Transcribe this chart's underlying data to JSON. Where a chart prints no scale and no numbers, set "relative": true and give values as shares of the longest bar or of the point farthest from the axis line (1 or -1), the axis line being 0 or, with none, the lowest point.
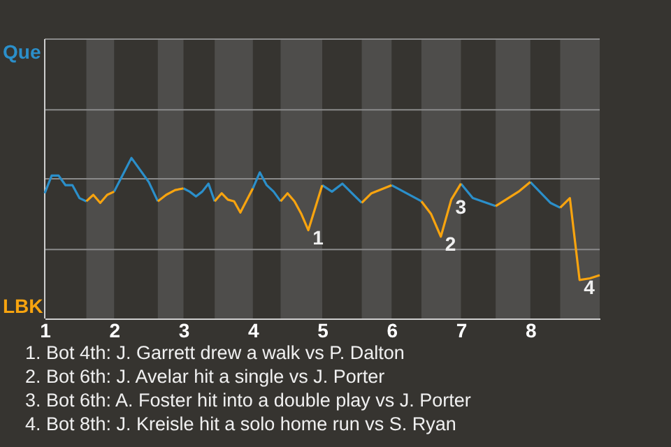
{
  "chart_data": {
    "type": "line",
    "relative": true,
    "series": [
      {
        "color": "#2b8fca",
        "x": [
          1,
          1.1,
          1.2,
          1.3,
          1.4,
          1.5,
          1.6,
          1.7,
          1.8,
          1.9,
          2,
          2.25,
          2.5,
          2.63,
          2.75,
          2.88,
          3,
          3.09,
          3.18,
          3.27,
          3.36,
          3.45,
          3.55,
          3.64,
          3.73,
          3.82,
          4,
          4.1,
          4.2,
          4.3,
          4.4,
          4.5,
          4.6,
          4.7,
          4.8,
          5,
          5.14,
          5.29,
          5.57,
          5.71,
          6,
          6.43,
          6.57,
          6.71,
          6.86,
          7,
          7.17,
          7.5,
          7.83,
          8,
          8.29,
          8.43
        ],
        "values": [
          0.78,
          0.89,
          0.89,
          0.83,
          0.83,
          0.75,
          0.73,
          null,
          null,
          null,
          0.79,
          1,
          0.85,
          0.73,
          null,
          null,
          0.81,
          0.79,
          0.76,
          0.79,
          0.84,
          0.73,
          null,
          null,
          null,
          null,
          0.81,
          0.91,
          0.83,
          0.79,
          0.73,
          null,
          null,
          null,
          null,
          0.83,
          0.79,
          0.84,
          0.72,
          null,
          0.83,
          0.73,
          null,
          null,
          null,
          0.84,
          0.75,
          0.7,
          null,
          0.85,
          0.72,
          0.69
        ]
      },
      {
        "color": "#f8a40f",
        "x": [
          1.6,
          1.7,
          1.8,
          1.9,
          2,
          2.25,
          2.5,
          2.63,
          2.75,
          2.88,
          3,
          3.09,
          3.18,
          3.27,
          3.36,
          3.45,
          3.55,
          3.64,
          3.73,
          3.82,
          4,
          4.1,
          4.2,
          4.3,
          4.4,
          4.5,
          4.6,
          4.7,
          4.8,
          5,
          5.14,
          5.29,
          5.57,
          5.71,
          6,
          6.2,
          6.43,
          6.57,
          6.71,
          6.86,
          7,
          7.17,
          7.5,
          7.83,
          8,
          8.29,
          8.43,
          8.57,
          8.71,
          8.86,
          9
        ],
        "values": [
          0.73,
          0.77,
          0.72,
          0.77,
          0.79,
          null,
          null,
          0.73,
          0.77,
          0.8,
          0.81,
          null,
          null,
          null,
          null,
          0.73,
          0.78,
          0.74,
          0.73,
          0.66,
          0.81,
          null,
          null,
          null,
          0.73,
          0.78,
          0.73,
          0.65,
          0.55,
          0.83,
          null,
          null,
          0.72,
          0.78,
          0.83,
          null,
          0.73,
          0.65,
          0.51,
          0.74,
          0.84,
          null,
          0.7,
          0.79,
          0.85,
          null,
          0.69,
          0.75,
          0.24,
          0.25,
          0.27
        ]
      }
    ],
    "xlim": [
      1,
      9
    ],
    "xticks": [
      1,
      2,
      3,
      4,
      5,
      6,
      7,
      8
    ],
    "ref_lines": [
      {
        "axis": "y",
        "value": 0.43,
        "color": "#8a8a8a"
      },
      {
        "axis": "y",
        "value": 0.87,
        "color": "#8a8a8a"
      },
      {
        "axis": "y",
        "value": 1.3,
        "color": "#8a8a8a"
      },
      {
        "axis": "y",
        "value": 1.74,
        "color": "#8a8a8a"
      }
    ],
    "bands": [
      {
        "axis": "x",
        "from": 1.6,
        "to": 2,
        "color": "#4e4d4b"
      },
      {
        "axis": "x",
        "from": 2.63,
        "to": 3,
        "color": "#4e4d4b"
      },
      {
        "axis": "x",
        "from": 3.45,
        "to": 4,
        "color": "#4e4d4b"
      },
      {
        "axis": "x",
        "from": 4.4,
        "to": 5,
        "color": "#4e4d4b"
      },
      {
        "axis": "x",
        "from": 5.57,
        "to": 6,
        "color": "#4e4d4b"
      },
      {
        "axis": "x",
        "from": 6.43,
        "to": 7,
        "color": "#4e4d4b"
      },
      {
        "axis": "x",
        "from": 7.5,
        "to": 8,
        "color": "#4e4d4b"
      },
      {
        "axis": "x",
        "from": 8.43,
        "to": 9,
        "color": "#4e4d4b"
      }
    ],
    "annotations": [
      "Que",
      "LBK",
      {
        "text": "1",
        "x": 4.8,
        "y": 0.55
      },
      {
        "text": "2",
        "x": 6.71,
        "y": 0.51
      },
      {
        "text": "3",
        "x": 6.86,
        "y": 0.74
      },
      {
        "text": "4",
        "x": 8.71,
        "y": 0.24
      },
      "1. Bot 4th: J. Garrett drew a walk vs P. Dalton",
      "2. Bot 6th: J. Avelar hit a single vs J. Porter",
      "3. Bot 6th: A. Foster hit into a double play vs J. Porter",
      "4. Bot 8th: J. Kreisle hit a solo home run vs S. Ryan"
    ]
  }
}
